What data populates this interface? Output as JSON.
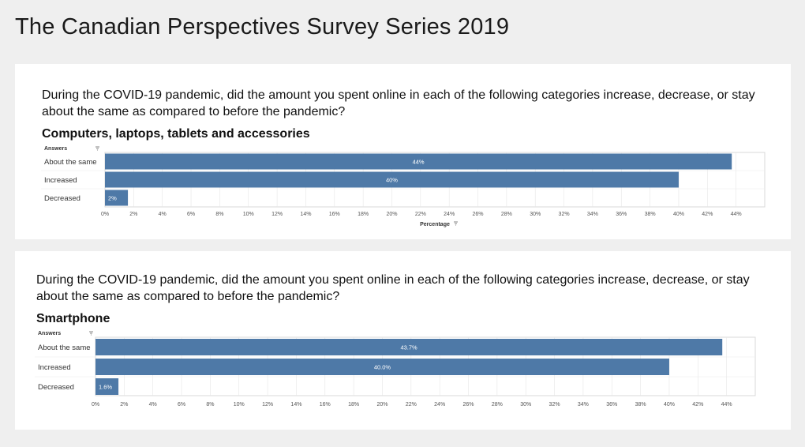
{
  "header": {
    "title": "The Canadian Perspectives Survey Series 2019"
  },
  "colors": {
    "bar": "#4e79a7",
    "grid": "#e6e6e6",
    "frame": "#d9d9d9",
    "label": "#555555"
  },
  "chart_data": [
    {
      "type": "bar",
      "orientation": "horizontal",
      "question": "During the COVID-19 pandemic, did the amount you spent online in each of the following categories increase, decrease, or stay about the same as compared to before the pandemic?",
      "title": "Computers, laptops, tablets and accessories",
      "row_header": "Answers",
      "xlabel": "Percentage",
      "categories": [
        "About the same",
        "Increased",
        "Decreased"
      ],
      "values": [
        43.7,
        40.0,
        1.6
      ],
      "data_labels": [
        "44%",
        "40%",
        "2%"
      ],
      "xlim": [
        0,
        46
      ],
      "xticks": [
        "0%",
        "2%",
        "4%",
        "6%",
        "8%",
        "10%",
        "12%",
        "14%",
        "16%",
        "18%",
        "20%",
        "22%",
        "24%",
        "26%",
        "28%",
        "30%",
        "32%",
        "34%",
        "36%",
        "38%",
        "40%",
        "42%",
        "44%"
      ],
      "grid": true
    },
    {
      "type": "bar",
      "orientation": "horizontal",
      "question": "During the COVID-19 pandemic, did the amount you spent online in each of the following categories increase, decrease, or stay about the same as compared to before the pandemic?",
      "title": "Smartphone",
      "row_header": "Answers",
      "xlabel": "",
      "categories": [
        "About the same",
        "Increased",
        "Decreased"
      ],
      "values": [
        43.7,
        40.0,
        1.6
      ],
      "data_labels": [
        "43.7%",
        "40.0%",
        "1.6%"
      ],
      "xlim": [
        0,
        46
      ],
      "xticks": [
        "0%",
        "2%",
        "4%",
        "6%",
        "8%",
        "10%",
        "12%",
        "14%",
        "16%",
        "18%",
        "20%",
        "22%",
        "24%",
        "26%",
        "28%",
        "30%",
        "32%",
        "34%",
        "36%",
        "38%",
        "40%",
        "42%",
        "44%"
      ],
      "grid": true
    }
  ]
}
